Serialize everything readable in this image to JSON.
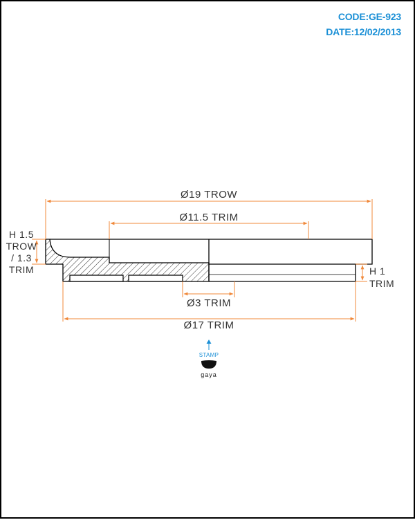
{
  "header": {
    "code": "CODE:GE-923",
    "date": "DATE:12/02/2013"
  },
  "dimensions": {
    "outer_diameter": "Ø19 TROW",
    "mid_diameter": "Ø11.5 TRIM",
    "hole_diameter": "Ø3 TRIM",
    "base_diameter": "Ø17 TRIM"
  },
  "side_labels": {
    "left_height": [
      "H 1.5",
      "TROW",
      "/ 1.3",
      "TRIM"
    ],
    "right_height": [
      "H 1",
      "TRIM"
    ]
  },
  "stamp": {
    "label": "STAMP",
    "brand": "gaya"
  },
  "colors": {
    "accent": "#1a8fd6",
    "dimension_line": "#f0883a",
    "outline": "#000000"
  }
}
